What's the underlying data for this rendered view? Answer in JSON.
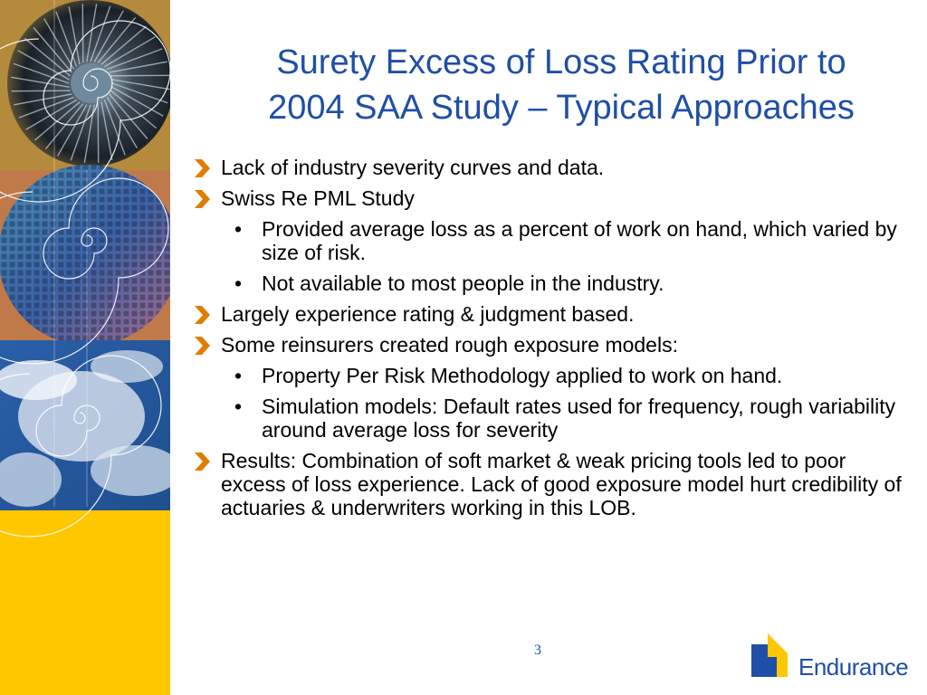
{
  "colors": {
    "title": "#1f4fa6",
    "chevron": "#e07c00",
    "side_yellow": "#ffc700",
    "logo_blue": "#1f4fa6",
    "logo_yellow": "#ffc700"
  },
  "side_strip": {
    "panels": [
      {
        "name": "turbine-panel"
      },
      {
        "name": "wafer-panel"
      },
      {
        "name": "satellite-cloud-panel"
      },
      {
        "name": "yellow-panel"
      }
    ],
    "overlay_icon": "spiral-icon"
  },
  "slide": {
    "title_lines": [
      "Surety Excess of Loss Rating Prior to",
      "2004 SAA Study – Typical Approaches"
    ],
    "bullet_icon": "chevron-right-icon",
    "sub_bullet_glyph": "•",
    "bullets": [
      {
        "text": "Lack of industry severity curves and data.",
        "sub": []
      },
      {
        "text": "Swiss Re PML Study",
        "sub": [
          "Provided average loss as a percent of work on hand, which varied by size of risk.",
          "Not available to most people in the industry."
        ]
      },
      {
        "text": "Largely experience rating & judgment based.",
        "sub": []
      },
      {
        "text": "Some reinsurers created rough exposure models:",
        "sub": [
          "Property Per Risk Methodology applied to work on hand.",
          "Simulation models: Default rates used for frequency, rough variability around average loss for severity"
        ]
      },
      {
        "text": "Results: Combination of soft market & weak pricing tools led to poor excess of loss experience. Lack of good exposure model hurt credibility of actuaries & underwriters working in this LOB.",
        "sub": []
      }
    ],
    "page_number": "3"
  },
  "logo": {
    "text": "Endurance",
    "icon": "endurance-logo-icon"
  }
}
